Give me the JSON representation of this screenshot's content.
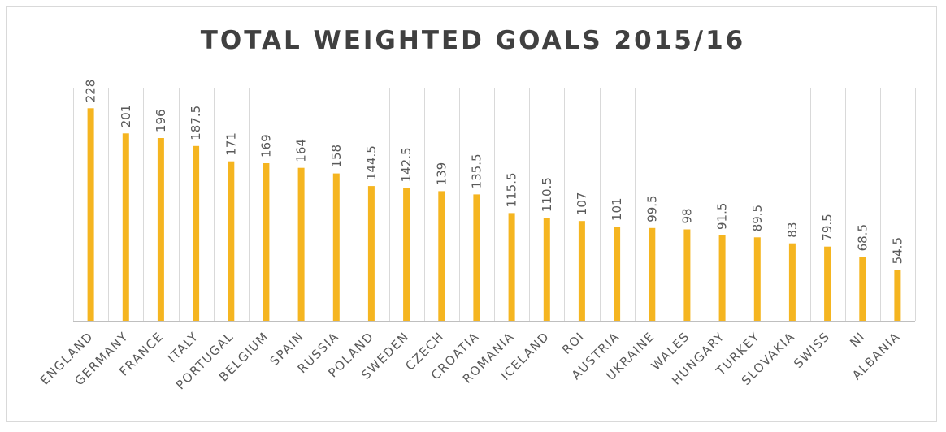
{
  "chart_data": {
    "type": "bar",
    "title": "TOTAL WEIGHTED GOALS 2015/16",
    "xlabel": "",
    "ylabel": "",
    "categories": [
      "ENGLAND",
      "GERMANY",
      "FRANCE",
      "ITALY",
      "PORTUGAL",
      "BELGIUM",
      "SPAIN",
      "RUSSIA",
      "POLAND",
      "SWEDEN",
      "CZECH",
      "CROATIA",
      "ROMANIA",
      "ICELAND",
      "ROI",
      "AUSTRIA",
      "UKRAINE",
      "WALES",
      "HUNGARY",
      "TURKEY",
      "SLOVAKIA",
      "SWISS",
      "NI",
      "ALBANIA"
    ],
    "values": [
      228,
      201,
      196,
      187.5,
      171,
      169,
      164,
      158,
      144.5,
      142.5,
      139,
      135.5,
      115.5,
      110.5,
      107,
      101,
      99.5,
      98,
      91.5,
      89.5,
      83,
      79.5,
      68.5,
      54.5
    ],
    "ylim": [
      0,
      250
    ],
    "grid": "vertical",
    "legend": "none",
    "bar_color": "#f5b520"
  }
}
